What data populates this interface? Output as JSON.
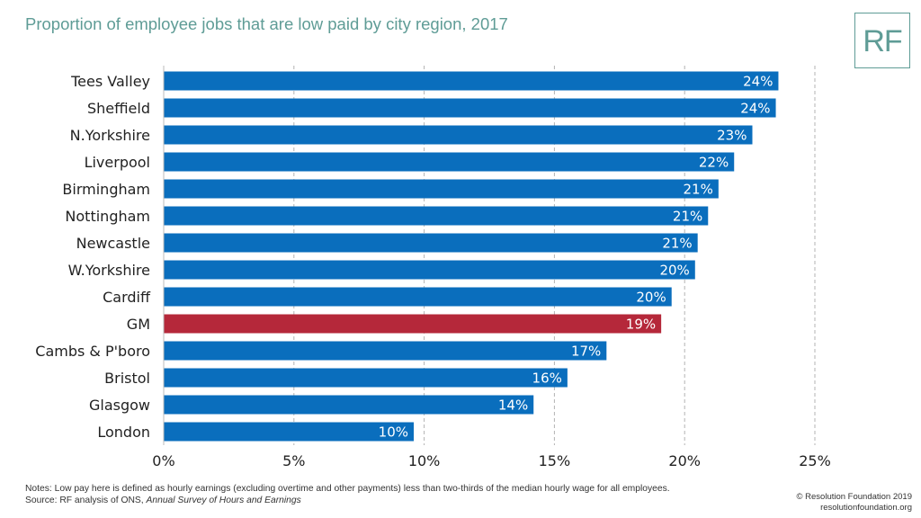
{
  "title": "Proportion of employee jobs that are low paid by city region, 2017",
  "logo_text": "RF",
  "notes": {
    "label": "Notes:",
    "text": "Low pay here is defined as hourly earnings (excluding overtime and other payments) less than two-thirds of the median hourly wage for all employees.",
    "source_prefix": "Source: RF analysis of ONS,",
    "source_title": "Annual Survey of Hours and Earnings"
  },
  "copyright": {
    "line1": "© Resolution Foundation 2019",
    "line2": "resolutionfoundation.org"
  },
  "colors": {
    "bar": "#0a6ebd",
    "highlight": "#b5283a",
    "title": "#5f9c96",
    "grid": "#b3b3b3"
  },
  "chart_data": {
    "type": "bar",
    "orientation": "horizontal",
    "categories": [
      "Tees Valley",
      "Sheffield",
      "N.Yorkshire",
      "Liverpool",
      "Birmingham",
      "Nottingham",
      "Newcastle",
      "W.Yorkshire",
      "Cardiff",
      "GM",
      "Cambs & P'boro",
      "Bristol",
      "Glasgow",
      "London"
    ],
    "values": [
      23.6,
      23.5,
      22.6,
      21.9,
      21.3,
      20.9,
      20.5,
      20.4,
      19.5,
      19.1,
      17.0,
      15.5,
      14.2,
      9.6
    ],
    "data_labels": [
      "24%",
      "24%",
      "23%",
      "22%",
      "21%",
      "21%",
      "21%",
      "20%",
      "20%",
      "19%",
      "17%",
      "16%",
      "14%",
      "10%"
    ],
    "highlight_category": "GM",
    "xlim": [
      0,
      25
    ],
    "x_ticks": [
      0,
      5,
      10,
      15,
      20,
      25
    ],
    "x_tick_labels": [
      "0%",
      "5%",
      "10%",
      "15%",
      "20%",
      "25%"
    ],
    "grid": "vertical dashed",
    "xlabel": "",
    "ylabel": ""
  }
}
